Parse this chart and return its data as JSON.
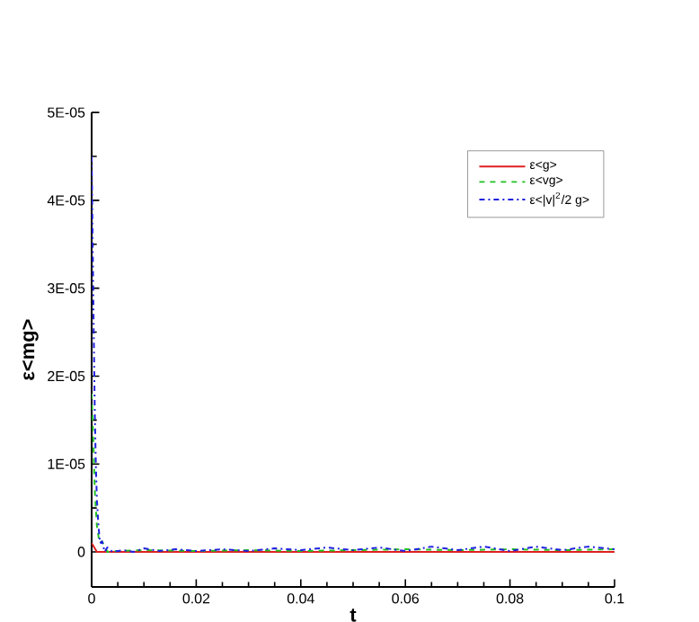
{
  "chart_data": {
    "type": "line",
    "xlabel": "t",
    "ylabel": "ε<mg>",
    "xlim": [
      0,
      0.1
    ],
    "ylim": [
      -4e-06,
      5e-05
    ],
    "xticks": [
      0,
      0.02,
      0.04,
      0.06,
      0.08,
      0.1
    ],
    "yticks": [
      {
        "value": 0,
        "label": "0"
      },
      {
        "value": 1e-05,
        "label": "1E-05"
      },
      {
        "value": 2e-05,
        "label": "2E-05"
      },
      {
        "value": 3e-05,
        "label": "3E-05"
      },
      {
        "value": 4e-05,
        "label": "4E-05"
      },
      {
        "value": 5e-05,
        "label": "5E-05"
      }
    ],
    "grid": false,
    "legend": "top right",
    "marker": "none",
    "series": [
      {
        "name": "ε<g>",
        "color": "#e02020",
        "line_style": "solid",
        "x": [
          0,
          0.0005,
          0.001,
          0.002,
          0.01,
          0.05,
          0.1
        ],
        "values": [
          1e-06,
          5e-07,
          0,
          0,
          0,
          0,
          0
        ]
      },
      {
        "name": "ε<vg>",
        "color": "#20c020",
        "line_style": "dashed",
        "x": [
          0,
          0.0003,
          0.0006,
          0.001,
          0.0015,
          0.002,
          0.003,
          0.005,
          0.01,
          0.02,
          0.03,
          0.04,
          0.05,
          0.06,
          0.07,
          0.08,
          0.09,
          0.1
        ],
        "values": [
          1.8e-05,
          1.3e-05,
          7e-06,
          3e-06,
          1e-06,
          1.2e-06,
          0,
          1e-07,
          2e-07,
          1e-07,
          2e-07,
          1e-07,
          2e-07,
          3e-07,
          2e-07,
          3e-07,
          2e-07,
          3e-07
        ]
      },
      {
        "name": "ε<|v|$^{2}$/2 g>",
        "color": "#2020e0",
        "line_style": "dashdot",
        "x": [
          0,
          0.0002,
          0.0004,
          0.0006,
          0.0008,
          0.001,
          0.0013,
          0.0016,
          0.002,
          0.0025,
          0.003,
          0.004,
          0.006,
          0.008,
          0.01,
          0.013,
          0.016,
          0.02,
          0.025,
          0.03,
          0.035,
          0.04,
          0.045,
          0.05,
          0.055,
          0.06,
          0.065,
          0.07,
          0.075,
          0.08,
          0.085,
          0.09,
          0.095,
          0.1
        ],
        "values": [
          4.5e-05,
          3.5e-05,
          2.5e-05,
          1.6e-05,
          1e-05,
          6e-06,
          3e-06,
          1e-06,
          1.2e-06,
          0,
          5e-07,
          0,
          2e-07,
          0,
          4e-07,
          1e-07,
          3e-07,
          1e-07,
          3e-07,
          1e-07,
          4e-07,
          2e-07,
          5e-07,
          2e-07,
          5e-07,
          1e-07,
          6e-07,
          2e-07,
          6e-07,
          1e-07,
          6e-07,
          2e-07,
          6e-07,
          3e-07
        ]
      }
    ]
  }
}
